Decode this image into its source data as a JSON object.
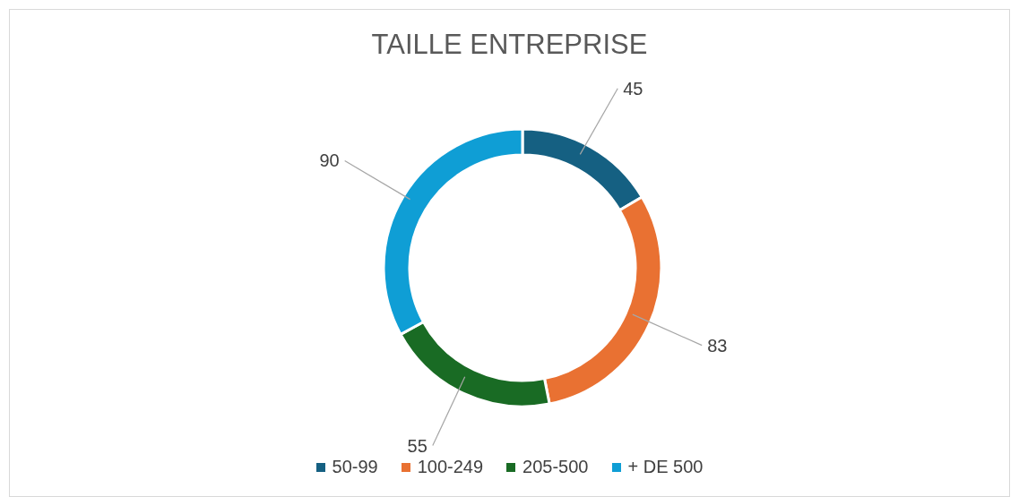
{
  "chart_data": {
    "type": "donut",
    "title": "TAILLE ENTREPRISE",
    "categories": [
      "50-99",
      "100-249",
      "205-500",
      "+ DE 500"
    ],
    "values": [
      45,
      83,
      55,
      90
    ],
    "colors": [
      "#156082",
      "#e97132",
      "#196b24",
      "#0f9ed5"
    ],
    "data_labels": true,
    "legend": "bottom"
  }
}
